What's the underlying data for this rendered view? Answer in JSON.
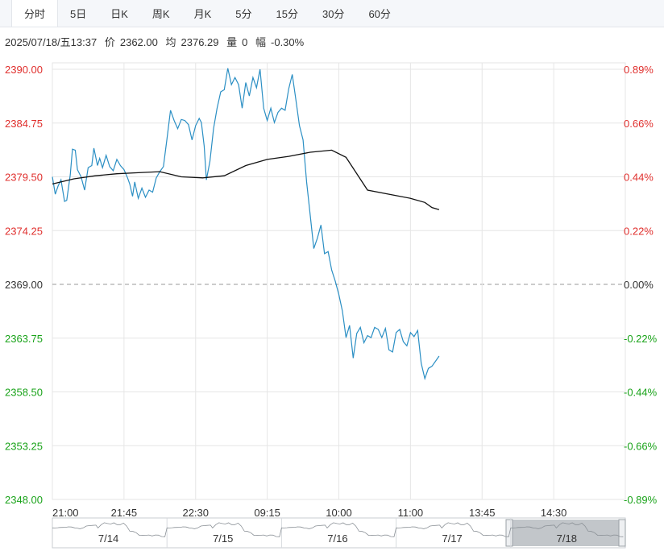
{
  "tabs": [
    {
      "label": "分时",
      "active": true
    },
    {
      "label": "5日"
    },
    {
      "label": "日K"
    },
    {
      "label": "周K"
    },
    {
      "label": "月K"
    },
    {
      "label": "5分"
    },
    {
      "label": "15分"
    },
    {
      "label": "30分"
    },
    {
      "label": "60分"
    }
  ],
  "info": {
    "datetime": "2025/07/18/五13:37",
    "price_label": "价",
    "price": "2362.00",
    "avg_label": "均",
    "avg": "2376.29",
    "vol_label": "量",
    "vol": "0",
    "change_label": "幅",
    "change": "-0.30%"
  },
  "colors": {
    "price_line": "#2b8fc4",
    "avg_line": "#111111",
    "up": "#e0302e",
    "down": "#1aa31a",
    "grid": "#e6e6e6"
  },
  "chart_data": {
    "type": "line",
    "ylim": [
      2348.0,
      2390.0
    ],
    "base_price": 2369.0,
    "y_ticks_left": [
      "2390.00",
      "2384.75",
      "2379.50",
      "2374.25",
      "2369.00",
      "2363.75",
      "2358.50",
      "2353.25",
      "2348.00"
    ],
    "y_ticks_right": [
      "0.89%",
      "0.66%",
      "0.44%",
      "0.22%",
      "0.00%",
      "-0.22%",
      "-0.44%",
      "-0.66%",
      "-0.89%"
    ],
    "x_ticks": [
      "21:00",
      "21:45",
      "22:30",
      "09:15",
      "10:00",
      "11:00",
      "13:45",
      "14:30"
    ],
    "x_index_range": [
      0,
      8
    ],
    "series": [
      {
        "values_x": [
          0,
          0.04,
          0.08,
          0.12,
          0.17,
          0.2,
          0.25,
          0.28,
          0.32,
          0.35,
          0.4,
          0.45,
          0.5,
          0.55,
          0.58,
          0.63,
          0.66,
          0.7,
          0.75,
          0.8,
          0.85,
          0.9,
          0.95,
          1.0,
          1.05,
          1.08,
          1.12,
          1.15,
          1.2,
          1.25,
          1.3,
          1.35,
          1.4,
          1.45,
          1.5,
          1.55,
          1.6,
          1.65,
          1.7,
          1.75,
          1.8,
          1.85,
          1.9,
          1.95,
          2.0,
          2.05,
          2.08,
          2.12,
          2.15,
          2.2,
          2.25,
          2.3,
          2.35,
          2.4,
          2.45,
          2.5,
          2.55,
          2.6,
          2.65,
          2.7,
          2.75,
          2.8,
          2.85,
          2.9,
          2.95,
          3.0,
          3.05,
          3.1,
          3.15,
          3.2,
          3.25,
          3.3,
          3.35,
          3.4,
          3.45,
          3.5,
          3.55,
          3.6,
          3.65,
          3.7,
          3.75,
          3.8,
          3.85,
          3.9,
          3.95,
          4.0,
          4.05,
          4.1,
          4.15,
          4.2,
          4.25,
          4.3,
          4.35,
          4.4,
          4.45,
          4.5,
          4.55,
          4.6,
          4.65,
          4.7,
          4.75,
          4.8,
          4.85,
          4.9,
          4.95,
          5.0,
          5.05,
          5.1,
          5.15,
          5.2,
          5.25,
          5.3,
          5.35,
          5.4
        ],
        "values_y": [
          2379.5,
          2377.8,
          2378.6,
          2379.2,
          2377.1,
          2377.2,
          2379.7,
          2382.2,
          2382.1,
          2380.2,
          2379.5,
          2378.2,
          2380.4,
          2380.6,
          2382.3,
          2380.6,
          2381.3,
          2380.4,
          2381.6,
          2380.5,
          2380.1,
          2381.2,
          2380.6,
          2380.2,
          2379.4,
          2378.8,
          2377.6,
          2379.0,
          2377.4,
          2378.4,
          2377.5,
          2378.2,
          2378.0,
          2379.4,
          2380.0,
          2380.5,
          2383.2,
          2386.0,
          2385.0,
          2384.2,
          2385.1,
          2385.0,
          2384.6,
          2383.1,
          2384.5,
          2385.2,
          2384.8,
          2382.5,
          2379.2,
          2381.0,
          2384.2,
          2386.2,
          2387.8,
          2388.0,
          2390.1,
          2388.5,
          2389.2,
          2388.5,
          2386.2,
          2388.7,
          2387.4,
          2389.2,
          2388.2,
          2390.0,
          2386.2,
          2385.0,
          2386.2,
          2384.8,
          2385.8,
          2386.2,
          2386.0,
          2388.1,
          2389.5,
          2387.0,
          2384.5,
          2383.1,
          2379.0,
          2375.8,
          2372.5,
          2373.5,
          2374.8,
          2372.0,
          2372.2,
          2370.4,
          2369.3,
          2368.0,
          2366.4,
          2363.8,
          2365.0,
          2361.8,
          2364.2,
          2364.8,
          2363.3,
          2364.0,
          2363.8,
          2364.8,
          2364.6,
          2363.8,
          2364.7,
          2362.6,
          2362.4,
          2364.3,
          2364.6,
          2363.4,
          2363.0,
          2364.3,
          2363.9,
          2364.5,
          2361.3,
          2359.8,
          2360.8,
          2361.0,
          2361.5,
          2362.0
        ],
        "role": "price"
      },
      {
        "values_x": [
          0,
          0.3,
          0.6,
          0.9,
          1.2,
          1.5,
          1.8,
          2.1,
          2.4,
          2.7,
          3.0,
          3.3,
          3.6,
          3.9,
          4.1,
          4.4,
          4.7,
          5.0,
          5.2,
          5.3,
          5.4
        ],
        "values_y": [
          2378.8,
          2379.3,
          2379.6,
          2379.8,
          2379.9,
          2380.0,
          2379.5,
          2379.4,
          2379.6,
          2380.6,
          2381.2,
          2381.5,
          2381.9,
          2382.1,
          2381.4,
          2378.2,
          2377.8,
          2377.4,
          2377.0,
          2376.5,
          2376.3
        ],
        "role": "avg"
      }
    ],
    "navigator": {
      "labels": [
        "7/14",
        "7/15",
        "7/16",
        "7/17",
        "7/18"
      ]
    }
  }
}
